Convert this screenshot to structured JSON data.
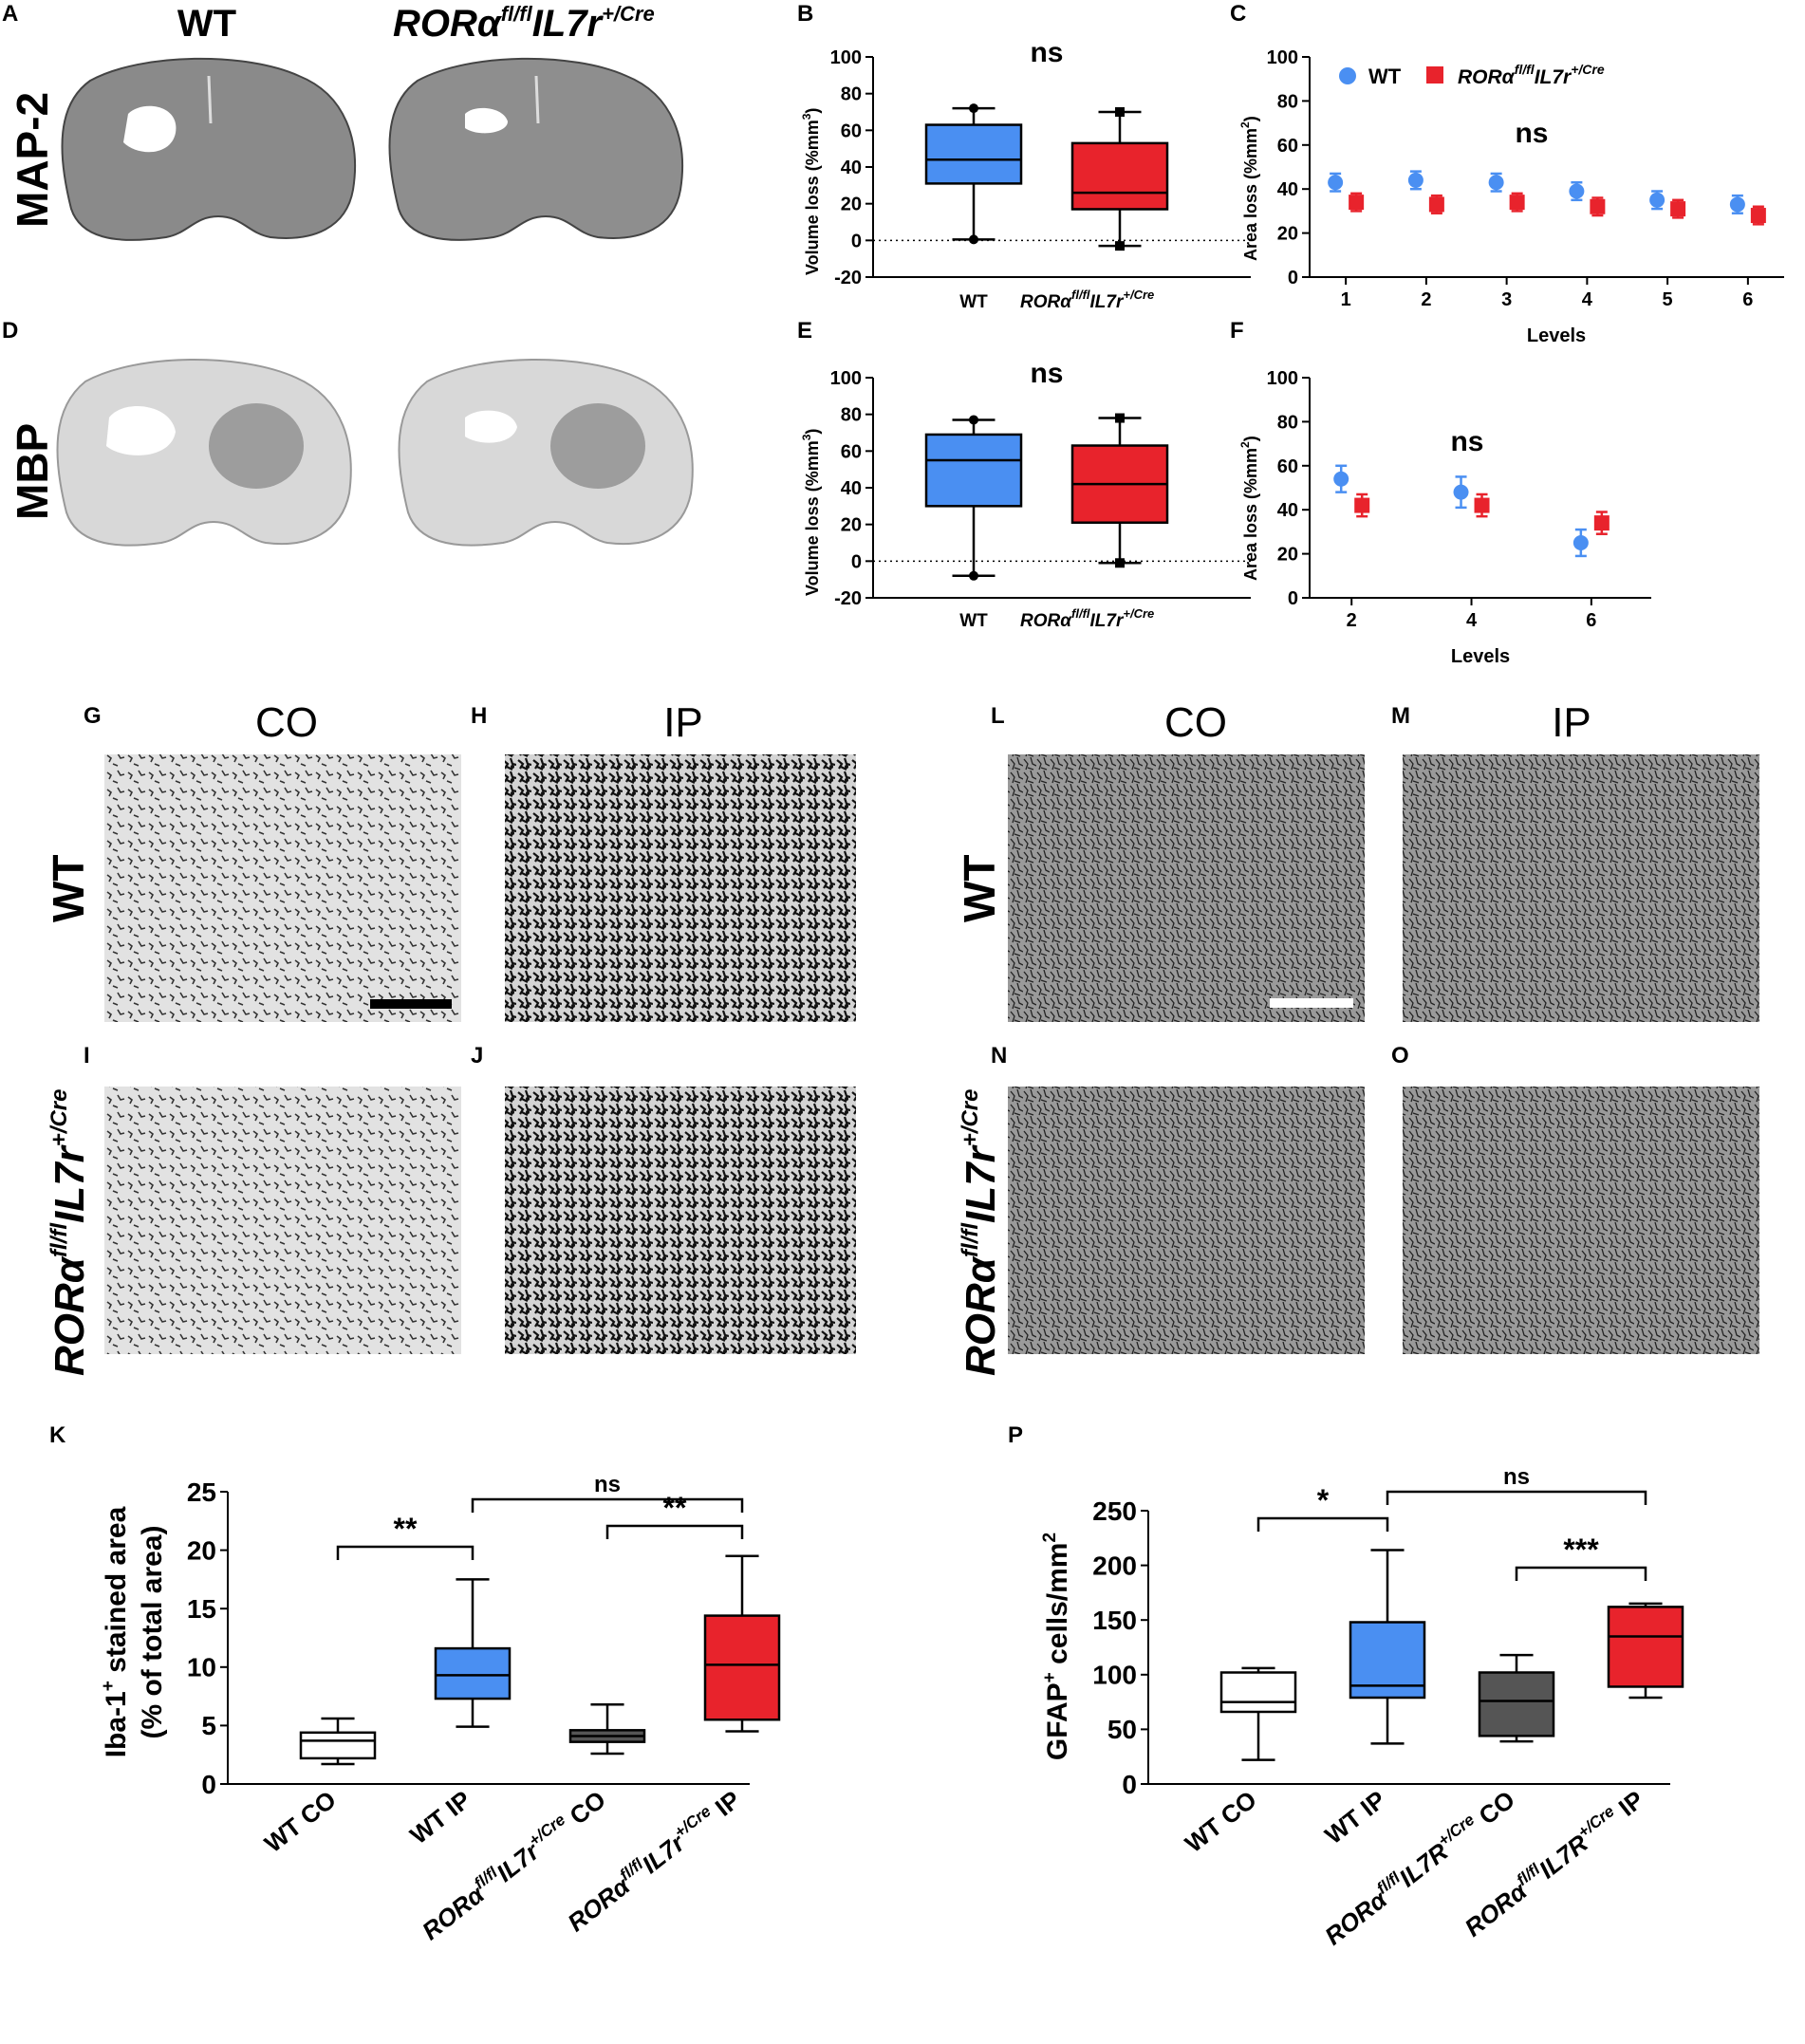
{
  "colors": {
    "wt": "#4a8ff2",
    "ko": "#e8232c",
    "dark": "#555555",
    "white": "#ffffff"
  },
  "row_labels": {
    "map2": "MAP-2",
    "mbp": "MBP",
    "wt": "WT"
  },
  "headers": {
    "wt": "WT",
    "ko_main": "RORα",
    "ko_sup1": "fl/fl",
    "ko_mid": "IL7r",
    "ko_sup2": "+/Cre",
    "co": "CO",
    "ip": "IP"
  },
  "geno_label": {
    "main": "RORα",
    "sup1": "fl/fl",
    "mid": "IL7r",
    "sup2": "+/Cre"
  },
  "panel_letters": {
    "A": "A",
    "B": "B",
    "C": "C",
    "D": "D",
    "E": "E",
    "F": "F",
    "G": "G",
    "H": "H",
    "I": "I",
    "J": "J",
    "K": "K",
    "L": "L",
    "M": "M",
    "N": "N",
    "O": "O",
    "P": "P"
  },
  "legend": {
    "wt": "WT"
  },
  "chart_data": [
    {
      "id": "B",
      "type": "box",
      "title": "",
      "ylabel": "Volume loss (%mm³)",
      "ylim": [
        -20,
        100
      ],
      "yticks": [
        -20,
        0,
        20,
        40,
        60,
        80,
        100
      ],
      "categories": [
        "WT",
        "RORαfl/flIL7r+/Cre"
      ],
      "boxes": [
        {
          "name": "WT",
          "min": 0.5,
          "q1": 31,
          "median": 44,
          "q3": 63,
          "max": 72,
          "color": "#4a8ff2"
        },
        {
          "name": "RORαfl/flIL7r+/Cre",
          "min": -3,
          "q1": 17,
          "median": 26,
          "q3": 53,
          "max": 70,
          "color": "#e8232c"
        }
      ],
      "annotation": "ns"
    },
    {
      "id": "C",
      "type": "scatter",
      "xlabel": "Levels",
      "ylabel": "Area loss (%mm²)",
      "ylim": [
        0,
        100
      ],
      "yticks": [
        0,
        20,
        40,
        60,
        80,
        100
      ],
      "x": [
        1,
        2,
        3,
        4,
        5,
        6
      ],
      "series": [
        {
          "name": "WT",
          "values": [
            43,
            44,
            43,
            39,
            35,
            33
          ],
          "err": [
            4,
            4,
            4,
            4,
            4,
            4
          ],
          "color": "#4a8ff2"
        },
        {
          "name": "RORαfl/flIL7r+/Cre",
          "values": [
            34,
            33,
            34,
            32,
            31,
            28
          ],
          "err": [
            4,
            4,
            4,
            4,
            4,
            4
          ],
          "color": "#e8232c"
        }
      ],
      "annotation": "ns"
    },
    {
      "id": "E",
      "type": "box",
      "ylabel": "Volume loss (%mm³)",
      "ylim": [
        -20,
        100
      ],
      "yticks": [
        -20,
        0,
        20,
        40,
        60,
        80,
        100
      ],
      "categories": [
        "WT",
        "RORαfl/flIL7r+/Cre"
      ],
      "boxes": [
        {
          "name": "WT",
          "min": -8,
          "q1": 30,
          "median": 55,
          "q3": 69,
          "max": 77,
          "color": "#4a8ff2"
        },
        {
          "name": "RORαfl/flIL7r+/Cre",
          "min": -1,
          "q1": 21,
          "median": 42,
          "q3": 63,
          "max": 78,
          "color": "#e8232c"
        }
      ],
      "annotation": "ns"
    },
    {
      "id": "F",
      "type": "scatter",
      "xlabel": "Levels",
      "ylabel": "Area loss (%mm²)",
      "ylim": [
        0,
        100
      ],
      "yticks": [
        0,
        20,
        40,
        60,
        80,
        100
      ],
      "x": [
        2,
        4,
        6
      ],
      "series": [
        {
          "name": "WT",
          "values": [
            54,
            48,
            25
          ],
          "err": [
            6,
            7,
            6
          ],
          "color": "#4a8ff2"
        },
        {
          "name": "RORαfl/flIL7r+/Cre",
          "values": [
            42,
            42,
            34
          ],
          "err": [
            5,
            5,
            5
          ],
          "color": "#e8232c"
        }
      ],
      "annotation": "ns"
    },
    {
      "id": "K",
      "type": "box",
      "ylabel": "Iba-1⁺ stained area (% of total area)",
      "ylim": [
        0,
        25
      ],
      "yticks": [
        0,
        5,
        10,
        15,
        20,
        25
      ],
      "categories": [
        "WT CO",
        "WT IP",
        "RORαfl/flIL7r+/Cre CO",
        "RORαfl/flIL7r+/Cre IP"
      ],
      "boxes": [
        {
          "name": "WT CO",
          "min": 1.7,
          "q1": 2.2,
          "median": 3.7,
          "q3": 4.4,
          "max": 5.6,
          "color": "#ffffff"
        },
        {
          "name": "WT IP",
          "min": 4.9,
          "q1": 7.3,
          "median": 9.3,
          "q3": 11.6,
          "max": 17.5,
          "color": "#4a8ff2"
        },
        {
          "name": "RORαfl/flIL7r+/Cre CO",
          "min": 2.6,
          "q1": 3.6,
          "median": 4.1,
          "q3": 4.6,
          "max": 6.8,
          "color": "#555555"
        },
        {
          "name": "RORαfl/flIL7r+/Cre IP",
          "min": 4.5,
          "q1": 5.5,
          "median": 10.2,
          "q3": 14.4,
          "max": 19.5,
          "color": "#e8232c"
        }
      ],
      "significance": [
        {
          "pair": [
            "WT CO",
            "WT IP"
          ],
          "label": "**"
        },
        {
          "pair": [
            "RORαfl/flIL7r+/Cre CO",
            "RORαfl/flIL7r+/Cre IP"
          ],
          "label": "**"
        },
        {
          "pair": [
            "WT IP",
            "RORαfl/flIL7r+/Cre IP"
          ],
          "label": "ns"
        }
      ]
    },
    {
      "id": "P",
      "type": "box",
      "ylabel": "GFAP⁺ cells/mm²",
      "ylim": [
        0,
        250
      ],
      "yticks": [
        0,
        50,
        100,
        150,
        200,
        250
      ],
      "categories": [
        "WT CO",
        "WT IP",
        "RORαfl/flIL7R+/Cre CO",
        "RORαfl/flIL7R+/Cre IP"
      ],
      "boxes": [
        {
          "name": "WT CO",
          "min": 22,
          "q1": 66,
          "median": 75,
          "q3": 102,
          "max": 106,
          "color": "#ffffff"
        },
        {
          "name": "WT IP",
          "min": 37,
          "q1": 79,
          "median": 90,
          "q3": 148,
          "max": 214,
          "color": "#4a8ff2"
        },
        {
          "name": "RORαfl/flIL7R+/Cre CO",
          "min": 39,
          "q1": 44,
          "median": 76,
          "q3": 102,
          "max": 118,
          "color": "#555555"
        },
        {
          "name": "RORαfl/flIL7R+/Cre IP",
          "min": 79,
          "q1": 89,
          "median": 135,
          "q3": 162,
          "max": 165,
          "color": "#e8232c"
        }
      ],
      "significance": [
        {
          "pair": [
            "WT CO",
            "WT IP"
          ],
          "label": "*"
        },
        {
          "pair": [
            "RORαfl/flIL7R+/Cre CO",
            "RORαfl/flIL7R+/Cre IP"
          ],
          "label": "***"
        },
        {
          "pair": [
            "WT IP",
            "RORαfl/flIL7R+/Cre IP"
          ],
          "label": "ns"
        }
      ]
    }
  ],
  "xlabels": {
    "levels": "Levels",
    "wt": "WT",
    "ko_main": "RORα",
    "ko_sup1": "fl/fl",
    "ko_mid": "IL7r",
    "ko_sup2": "+/Cre",
    "k_cats": [
      "WT CO",
      "WT IP"
    ],
    "k_ko": {
      "main": "RORα",
      "sup1": "fl/fl",
      "mid": "IL7r",
      "sup2": "+/Cre",
      "co": "CO",
      "ip": "IP"
    },
    "p_ko": {
      "main": "RORα",
      "sup1": "fl/fl",
      "mid": "IL7R",
      "sup2": "+/Cre",
      "co": "CO",
      "ip": "IP"
    }
  },
  "ylabels": {
    "vol": "Volume loss (%mm",
    "vol_sup": "3",
    "vol_end": ")",
    "area": "Area loss (%mm",
    "area_sup": "2",
    "area_end": ")",
    "k_line1": "Iba-1",
    "k_sup": "+",
    "k_line1b": " stained area",
    "k_line2": "(% of total area)",
    "p": "GFAP",
    "p_sup": "+",
    "p_end": " cells/mm",
    "p_sup2": "2"
  }
}
